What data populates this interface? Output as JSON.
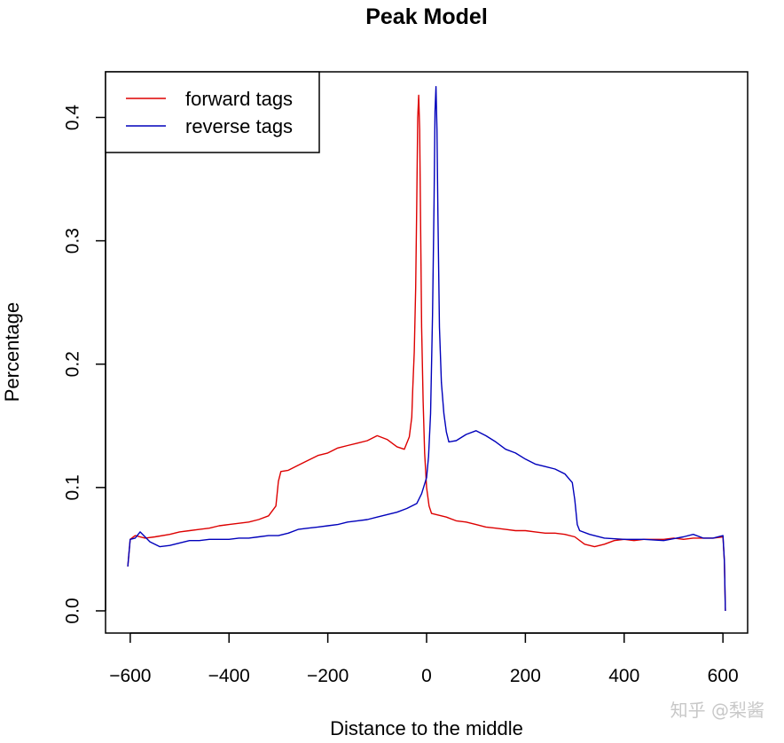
{
  "chart_data": {
    "type": "line",
    "title": "Peak Model",
    "xlabel": "Distance to the middle",
    "ylabel": "Percentage",
    "xlim": [
      -650,
      650
    ],
    "ylim": [
      -0.018,
      0.437
    ],
    "x_ticks": [
      -600,
      -400,
      -200,
      0,
      200,
      400,
      600
    ],
    "x_tick_labels": [
      "−600",
      "−400",
      "−200",
      "0",
      "200",
      "400",
      "600"
    ],
    "y_ticks": [
      0.0,
      0.1,
      0.2,
      0.3,
      0.4
    ],
    "y_tick_labels": [
      "0.0",
      "0.1",
      "0.2",
      "0.3",
      "0.4"
    ],
    "legend_position": "top-left",
    "series": [
      {
        "name": "forward tags",
        "color": "#dd0000",
        "x": [
          -605,
          -600,
          -590,
          -570,
          -550,
          -520,
          -500,
          -480,
          -460,
          -440,
          -420,
          -400,
          -380,
          -360,
          -340,
          -320,
          -305,
          -300,
          -295,
          -280,
          -260,
          -240,
          -220,
          -200,
          -180,
          -160,
          -140,
          -120,
          -100,
          -80,
          -60,
          -45,
          -35,
          -30,
          -28,
          -25,
          -22,
          -20,
          -18,
          -16,
          -14,
          -12,
          -10,
          -7,
          -4,
          0,
          5,
          10,
          20,
          40,
          60,
          80,
          100,
          120,
          140,
          160,
          180,
          200,
          220,
          240,
          260,
          280,
          300,
          320,
          340,
          360,
          380,
          400,
          420,
          440,
          460,
          480,
          500,
          520,
          540,
          560,
          580,
          600,
          603,
          605
        ],
        "y": [
          0.036,
          0.058,
          0.061,
          0.059,
          0.06,
          0.062,
          0.064,
          0.065,
          0.066,
          0.067,
          0.069,
          0.07,
          0.071,
          0.072,
          0.074,
          0.077,
          0.085,
          0.105,
          0.113,
          0.114,
          0.118,
          0.122,
          0.126,
          0.128,
          0.132,
          0.134,
          0.136,
          0.138,
          0.142,
          0.139,
          0.133,
          0.131,
          0.141,
          0.157,
          0.18,
          0.21,
          0.262,
          0.33,
          0.4,
          0.418,
          0.39,
          0.31,
          0.23,
          0.17,
          0.128,
          0.1,
          0.085,
          0.079,
          0.078,
          0.076,
          0.073,
          0.072,
          0.07,
          0.068,
          0.067,
          0.066,
          0.065,
          0.065,
          0.064,
          0.063,
          0.063,
          0.062,
          0.06,
          0.054,
          0.052,
          0.054,
          0.057,
          0.058,
          0.057,
          0.058,
          0.058,
          0.058,
          0.059,
          0.058,
          0.059,
          0.059,
          0.059,
          0.06,
          0.04,
          0.0
        ]
      },
      {
        "name": "reverse tags",
        "color": "#0000bb",
        "x": [
          -605,
          -600,
          -590,
          -580,
          -560,
          -540,
          -520,
          -500,
          -480,
          -460,
          -440,
          -420,
          -400,
          -380,
          -360,
          -340,
          -320,
          -300,
          -280,
          -260,
          -240,
          -220,
          -200,
          -180,
          -160,
          -140,
          -120,
          -100,
          -80,
          -60,
          -40,
          -20,
          -10,
          0,
          4,
          8,
          12,
          15,
          17,
          19,
          21,
          23,
          26,
          30,
          35,
          40,
          45,
          60,
          80,
          100,
          120,
          140,
          160,
          180,
          200,
          220,
          240,
          260,
          280,
          295,
          300,
          305,
          310,
          330,
          360,
          400,
          440,
          480,
          520,
          540,
          560,
          580,
          600,
          603,
          605
        ],
        "y": [
          0.036,
          0.058,
          0.059,
          0.064,
          0.056,
          0.052,
          0.053,
          0.055,
          0.057,
          0.057,
          0.058,
          0.058,
          0.058,
          0.059,
          0.059,
          0.06,
          0.061,
          0.061,
          0.063,
          0.066,
          0.067,
          0.068,
          0.069,
          0.07,
          0.072,
          0.073,
          0.074,
          0.076,
          0.078,
          0.08,
          0.083,
          0.087,
          0.095,
          0.108,
          0.125,
          0.16,
          0.24,
          0.33,
          0.405,
          0.425,
          0.39,
          0.32,
          0.23,
          0.185,
          0.16,
          0.145,
          0.137,
          0.138,
          0.143,
          0.146,
          0.142,
          0.137,
          0.131,
          0.128,
          0.123,
          0.119,
          0.117,
          0.115,
          0.111,
          0.104,
          0.09,
          0.07,
          0.065,
          0.062,
          0.059,
          0.058,
          0.058,
          0.057,
          0.06,
          0.062,
          0.059,
          0.059,
          0.061,
          0.04,
          0.0
        ]
      }
    ]
  },
  "watermark": "知乎 @梨酱"
}
